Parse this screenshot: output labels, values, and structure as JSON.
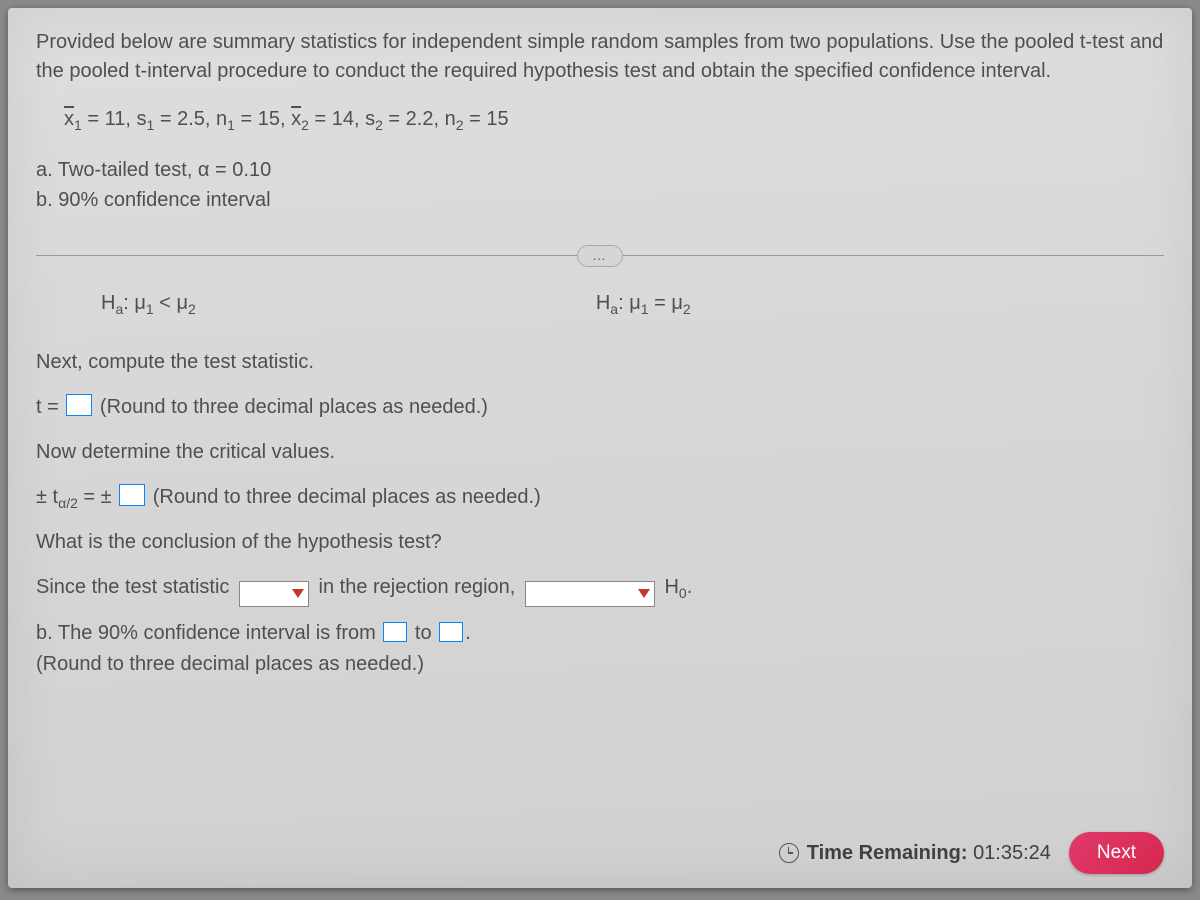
{
  "prompt": "Provided below are summary statistics for independent simple random samples from two populations. Use the pooled t-test and the pooled t-interval procedure to conduct the required hypothesis test and obtain the specified confidence interval.",
  "stats": {
    "x1bar": "11",
    "s1": "2.5",
    "n1": "15",
    "x2bar": "14",
    "s2": "2.2",
    "n2": "15"
  },
  "part_a": "a. Two-tailed test, α = 0.10",
  "part_b": "b. 90% confidence interval",
  "ellipsis": "…",
  "hypotheses": {
    "left": {
      "prefix": "H",
      "sub": "a",
      "rel": "<"
    },
    "right": {
      "prefix": "H",
      "sub": "a",
      "rel": "="
    },
    "mu1_label": "μ",
    "mu1_sub": "1",
    "mu2_label": "μ",
    "mu2_sub": "2"
  },
  "lines": {
    "compute": "Next, compute the test statistic.",
    "t_prefix": "t = ",
    "round_hint": " (Round to three decimal places as needed.)",
    "crit": "Now determine the critical values.",
    "talpha_prefix": "± t",
    "talpha_sub": "α/2",
    "talpha_mid": " = ± ",
    "conclusion_q": "What is the conclusion of the hypothesis test?",
    "since": "Since the test statistic ",
    "in_region": " in the rejection region, ",
    "h0": " H",
    "h0_sub": "0",
    "period": ".",
    "b_line_pre": "b. The 90% confidence interval is from ",
    "to": " to ",
    "b_round": "(Round to three decimal places as needed.)"
  },
  "footer": {
    "time_label": "Time Remaining:",
    "time_value": "01:35:24",
    "next": "Next"
  },
  "colors": {
    "accent_input": "#0a84ff",
    "accent_triangle": "#c0392b",
    "next_btn": "#d6284f",
    "text": "#4f4f4f",
    "bg": "#d8d8d8"
  }
}
